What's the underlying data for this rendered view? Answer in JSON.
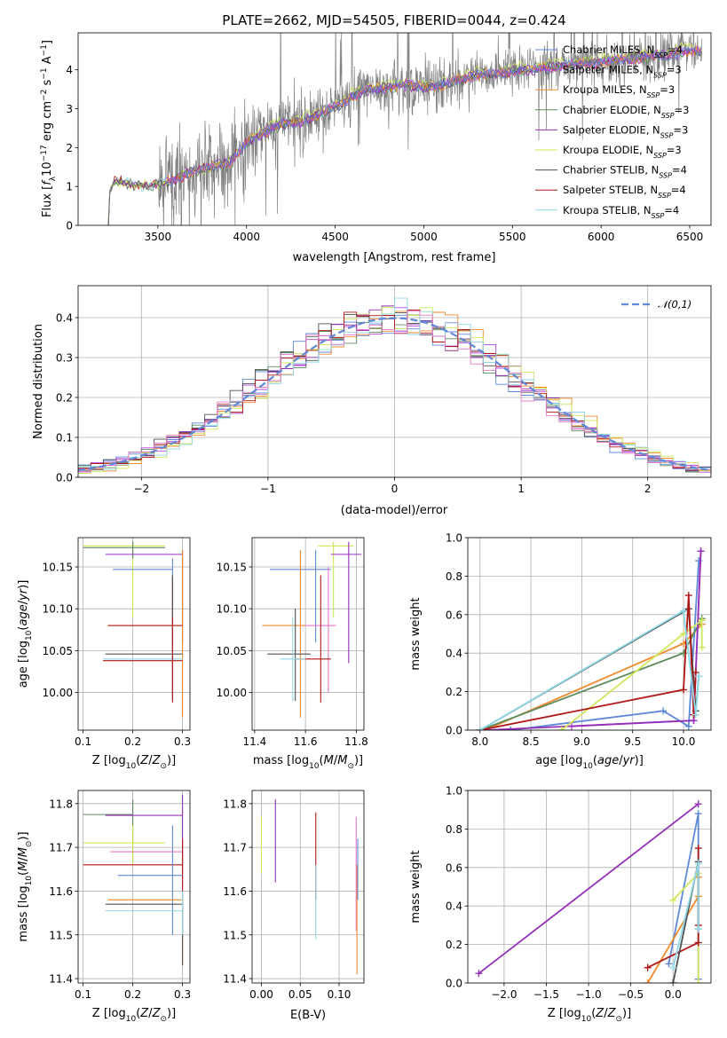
{
  "colors": {
    "chabrier_miles": "#5f88d8",
    "salpeter_miles": "#b548e0",
    "kroupa_miles": "#f28a2e",
    "chabrier_elodie": "#5c8a5c",
    "salpeter_elodie": "#9430b8",
    "kroupa_elodie": "#cfe85a",
    "chabrier_stelib": "#505050",
    "salpeter_stelib": "#b01818",
    "kroupa_stelib": "#8ed8e8",
    "data": "#808080",
    "pink": "#e878c8"
  },
  "chart_data": [
    {
      "id": "spectrum",
      "type": "line",
      "title": "PLATE=2662, MJD=54505, FIBERID=0044, z=0.424",
      "xlabel": "wavelength [Angstrom, rest frame]",
      "ylabel": "Flux [f_λ10^-17 erg cm^-2 s^-1 A^-1]",
      "xlim": [
        3050,
        6620
      ],
      "ylim": [
        0,
        4.95
      ],
      "xticks": [
        3500,
        4000,
        4500,
        5000,
        5500,
        6000,
        6500
      ],
      "yticks": [
        0,
        1,
        2,
        3,
        4
      ],
      "legend_position": "top-right",
      "legend": [
        {
          "label": "Chabrier MILES, N_SSP=4",
          "color_key": "chabrier_miles"
        },
        {
          "label": "Salpeter MILES, N_SSP=3",
          "color_key": "salpeter_miles"
        },
        {
          "label": "Kroupa MILES, N_SSP=3",
          "color_key": "kroupa_miles"
        },
        {
          "label": "Chabrier ELODIE, N_SSP=3",
          "color_key": "chabrier_elodie"
        },
        {
          "label": "Salpeter ELODIE, N_SSP=3",
          "color_key": "salpeter_elodie"
        },
        {
          "label": "Kroupa ELODIE, N_SSP=3",
          "color_key": "kroupa_elodie"
        },
        {
          "label": "Chabrier STELIB, N_SSP=4",
          "color_key": "chabrier_stelib"
        },
        {
          "label": "Salpeter STELIB, N_SSP=4",
          "color_key": "salpeter_stelib"
        },
        {
          "label": "Kroupa STELIB, N_SSP=4",
          "color_key": "kroupa_stelib"
        }
      ],
      "continuum": [
        [
          3220,
          0.0
        ],
        [
          3230,
          0.95
        ],
        [
          3260,
          1.15
        ],
        [
          3300,
          1.1
        ],
        [
          3400,
          1.02
        ],
        [
          3500,
          1.05
        ],
        [
          3600,
          1.2
        ],
        [
          3700,
          1.4
        ],
        [
          3800,
          1.5
        ],
        [
          3900,
          1.6
        ],
        [
          4000,
          2.1
        ],
        [
          4100,
          2.4
        ],
        [
          4200,
          2.6
        ],
        [
          4300,
          2.65
        ],
        [
          4400,
          2.85
        ],
        [
          4500,
          3.05
        ],
        [
          4600,
          3.3
        ],
        [
          4700,
          3.5
        ],
        [
          4800,
          3.55
        ],
        [
          4900,
          3.6
        ],
        [
          5000,
          3.55
        ],
        [
          5100,
          3.6
        ],
        [
          5200,
          3.75
        ],
        [
          5300,
          3.85
        ],
        [
          5400,
          3.9
        ],
        [
          5500,
          3.95
        ],
        [
          5600,
          4.0
        ],
        [
          5700,
          4.05
        ],
        [
          5800,
          4.1
        ],
        [
          5900,
          4.15
        ],
        [
          6000,
          4.2
        ],
        [
          6100,
          4.25
        ],
        [
          6200,
          4.3
        ],
        [
          6300,
          4.35
        ],
        [
          6400,
          4.4
        ],
        [
          6500,
          4.5
        ],
        [
          6570,
          4.45
        ]
      ],
      "noise_start": 3500
    },
    {
      "id": "residuals",
      "type": "bar",
      "xlabel": "(data-model)/error",
      "ylabel": "Normed distribution",
      "xlim": [
        -2.5,
        2.5
      ],
      "ylim": [
        0,
        0.48
      ],
      "xticks": [
        -2,
        -1,
        0,
        1,
        2
      ],
      "yticks": [
        0.0,
        0.1,
        0.2,
        0.3,
        0.4
      ],
      "legend": [
        {
          "label": "N(0,1)",
          "color_key": "chabrier_miles"
        }
      ],
      "legend_position": "top-right",
      "bin_width": 0.1,
      "bin_start": -2.5
    },
    {
      "id": "age_vs_Z",
      "type": "scatter",
      "xlabel": "Z [log10(Z/Z⊙)]",
      "ylabel": "age  [log10(age/yr)]",
      "xlim": [
        0.09,
        0.315
      ],
      "ylim": [
        9.955,
        10.185
      ],
      "xticks": [
        0.1,
        0.2,
        0.3
      ],
      "yticks": [
        10.0,
        10.05,
        10.1,
        10.15
      ],
      "points": [
        {
          "c": "kroupa_elodie",
          "x": 0.2,
          "xe": [
            0.1,
            0.265
          ],
          "y": 10.175,
          "ye": [
            10.09,
            10.18
          ]
        },
        {
          "c": "chabrier_elodie",
          "x": 0.2,
          "xe": [
            0.1,
            0.265
          ],
          "y": 10.173,
          "ye": [
            10.16,
            10.18
          ]
        },
        {
          "c": "salpeter_elodie",
          "x": 0.3,
          "xe": [
            0.145,
            0.3
          ],
          "y": 10.165,
          "ye": [
            10.06,
            10.17
          ]
        },
        {
          "c": "chabrier_miles",
          "x": 0.28,
          "xe": [
            0.16,
            0.28
          ],
          "y": 10.147,
          "ye": [
            10.05,
            10.16
          ]
        },
        {
          "c": "kroupa_miles",
          "x": 0.3,
          "xe": [
            0.15,
            0.3
          ],
          "y": 10.08,
          "ye": [
            9.97,
            10.17
          ]
        },
        {
          "c": "salpeter_stelib",
          "x": 0.28,
          "xe": [
            0.15,
            0.3
          ],
          "y": 10.08,
          "ye": [
            9.988,
            10.14
          ]
        },
        {
          "c": "chabrier_stelib",
          "x": 0.28,
          "xe": [
            0.145,
            0.3
          ],
          "y": 10.046,
          "ye": [
            9.99,
            10.14
          ]
        },
        {
          "c": "kroupa_stelib",
          "x": 0.28,
          "xe": [
            0.14,
            0.3
          ],
          "y": 10.04,
          "ye": [
            9.99,
            10.09
          ]
        },
        {
          "c": "salpeter_stelib",
          "x": 0.28,
          "xe": [
            0.14,
            0.3
          ],
          "y": 10.038,
          "ye": [
            9.99,
            10.09
          ]
        }
      ]
    },
    {
      "id": "age_vs_mass",
      "type": "scatter",
      "xlabel": "mass [log10(M/M⊙)]",
      "ylabel": "",
      "xlim": [
        11.39,
        11.83
      ],
      "ylim": [
        9.955,
        10.185
      ],
      "xticks": [
        11.4,
        11.6,
        11.8
      ],
      "yticks": [
        10.0,
        10.05,
        10.1,
        10.15
      ],
      "points": [
        {
          "c": "kroupa_elodie",
          "x": 11.71,
          "xe": [
            11.65,
            11.79
          ],
          "y": 10.175,
          "ye": [
            10.09,
            10.18
          ]
        },
        {
          "c": "salpeter_elodie",
          "x": 11.77,
          "xe": [
            11.7,
            11.82
          ],
          "y": 10.165,
          "ye": [
            10.035,
            10.18
          ]
        },
        {
          "c": "chabrier_miles",
          "x": 11.64,
          "xe": [
            11.46,
            11.7
          ],
          "y": 10.147,
          "ye": [
            10.06,
            10.17
          ]
        },
        {
          "c": "kroupa_miles",
          "x": 11.58,
          "xe": [
            11.43,
            11.6
          ],
          "y": 10.08,
          "ye": [
            9.97,
            10.17
          ]
        },
        {
          "c": "pink",
          "x": 11.69,
          "xe": [
            11.6,
            11.72
          ],
          "y": 10.08,
          "ye": [
            10.0,
            10.15
          ]
        },
        {
          "c": "chabrier_stelib",
          "x": 11.56,
          "xe": [
            11.45,
            11.62
          ],
          "y": 10.046,
          "ye": [
            9.99,
            10.1
          ]
        },
        {
          "c": "salpeter_stelib",
          "x": 11.66,
          "xe": [
            11.56,
            11.7
          ],
          "y": 10.04,
          "ye": [
            9.988,
            10.14
          ]
        },
        {
          "c": "kroupa_stelib",
          "x": 11.55,
          "xe": [
            11.5,
            11.6
          ],
          "y": 10.04,
          "ye": [
            9.99,
            10.09
          ]
        }
      ]
    },
    {
      "id": "weight_vs_age",
      "type": "line",
      "xlabel": "age  [log10(age/yr)]",
      "ylabel": "mass weight",
      "xlim": [
        7.88,
        10.27
      ],
      "ylim": [
        0,
        1.0
      ],
      "xticks": [
        8.0,
        8.5,
        9.0,
        9.5,
        10.0
      ],
      "yticks": [
        0.0,
        0.2,
        0.4,
        0.6,
        0.8,
        1.0
      ],
      "series": [
        {
          "c": "chabrier_miles",
          "x": [
            8.3,
            9.8,
            10.05,
            10.15
          ],
          "y": [
            0.0,
            0.1,
            0.02,
            0.88
          ]
        },
        {
          "c": "salpeter_miles",
          "x": [
            8.9,
            10.1,
            10.17
          ],
          "y": [
            0.02,
            0.05,
            0.93
          ]
        },
        {
          "c": "kroupa_miles",
          "x": [
            8.05,
            10.0,
            10.18
          ],
          "y": [
            0.0,
            0.45,
            0.55
          ]
        },
        {
          "c": "chabrier_elodie",
          "x": [
            8.0,
            10.0,
            10.18
          ],
          "y": [
            0.0,
            0.4,
            0.58
          ]
        },
        {
          "c": "salpeter_elodie",
          "x": [
            8.05,
            10.1,
            10.17
          ],
          "y": [
            0.0,
            0.05,
            0.93
          ]
        },
        {
          "c": "kroupa_elodie",
          "x": [
            8.8,
            10.0,
            10.18,
            10.18
          ],
          "y": [
            0.0,
            0.5,
            0.57,
            0.43
          ]
        },
        {
          "c": "chabrier_stelib",
          "x": [
            8.0,
            10.05,
            10.12,
            10.15
          ],
          "y": [
            0.0,
            0.63,
            0.1,
            0.28
          ]
        },
        {
          "c": "salpeter_stelib",
          "x": [
            8.0,
            10.0,
            10.05,
            10.1,
            10.12
          ],
          "y": [
            0.0,
            0.21,
            0.7,
            0.08,
            0.3
          ]
        },
        {
          "c": "kroupa_stelib",
          "x": [
            8.0,
            10.0,
            10.12,
            10.15
          ],
          "y": [
            0.0,
            0.62,
            0.08,
            0.28
          ]
        }
      ]
    },
    {
      "id": "mass_vs_Z",
      "type": "scatter",
      "xlabel": "Z [log10(Z/Z⊙)]",
      "ylabel": "mass [log10(M/M⊙)]",
      "xlim": [
        0.09,
        0.315
      ],
      "ylim": [
        11.39,
        11.83
      ],
      "xticks": [
        0.1,
        0.2,
        0.3
      ],
      "yticks": [
        11.4,
        11.5,
        11.6,
        11.7,
        11.8
      ],
      "points": [
        {
          "c": "chabrier_elodie",
          "x": 0.2,
          "xe": [
            0.1,
            0.2
          ],
          "y": 11.775,
          "ye": [
            11.66,
            11.81
          ]
        },
        {
          "c": "salpeter_elodie",
          "x": 0.3,
          "xe": [
            0.145,
            0.3
          ],
          "y": 11.773,
          "ye": [
            11.64,
            11.82
          ]
        },
        {
          "c": "kroupa_elodie",
          "x": 0.2,
          "xe": [
            0.1,
            0.265
          ],
          "y": 11.71,
          "ye": [
            11.66,
            11.75
          ]
        },
        {
          "c": "pink",
          "x": 0.3,
          "xe": [
            0.155,
            0.3
          ],
          "y": 11.69,
          "ye": [
            11.6,
            11.72
          ]
        },
        {
          "c": "salpeter_stelib",
          "x": 0.3,
          "xe": [
            0.1,
            0.3
          ],
          "y": 11.66,
          "ye": [
            11.6,
            11.72
          ]
        },
        {
          "c": "chabrier_miles",
          "x": 0.28,
          "xe": [
            0.17,
            0.3
          ],
          "y": 11.636,
          "ye": [
            11.5,
            11.75
          ]
        },
        {
          "c": "kroupa_miles",
          "x": 0.3,
          "xe": [
            0.15,
            0.3
          ],
          "y": 11.58,
          "ye": [
            11.43,
            11.6
          ]
        },
        {
          "c": "chabrier_stelib",
          "x": 0.3,
          "xe": [
            0.145,
            0.3
          ],
          "y": 11.57,
          "ye": [
            11.43,
            11.6
          ]
        },
        {
          "c": "kroupa_stelib",
          "x": 0.3,
          "xe": [
            0.145,
            0.3
          ],
          "y": 11.555,
          "ye": [
            11.5,
            11.6
          ]
        }
      ]
    },
    {
      "id": "mass_vs_ebv",
      "type": "scatter",
      "xlabel": "E(B-V)",
      "ylabel": "",
      "xlim": [
        -0.012,
        0.132
      ],
      "ylim": [
        11.39,
        11.83
      ],
      "xticks": [
        0.0,
        0.05,
        0.1
      ],
      "yticks": [
        11.4,
        11.5,
        11.6,
        11.7,
        11.8
      ],
      "points": [
        {
          "c": "kroupa_elodie",
          "x": 0.0,
          "y": 11.71,
          "ye": [
            11.64,
            11.77
          ]
        },
        {
          "c": "salpeter_elodie",
          "x": 0.018,
          "y": 11.77,
          "ye": [
            11.62,
            11.81
          ]
        },
        {
          "c": "salpeter_stelib",
          "x": 0.07,
          "y": 11.7,
          "ye": [
            11.58,
            11.78
          ]
        },
        {
          "c": "kroupa_stelib",
          "x": 0.07,
          "y": 11.57,
          "ye": [
            11.49,
            11.66
          ]
        },
        {
          "c": "pink",
          "x": 0.122,
          "y": 11.65,
          "ye": [
            11.51,
            11.77
          ]
        },
        {
          "c": "kroupa_miles",
          "x": 0.123,
          "y": 11.5,
          "ye": [
            11.41,
            11.66
          ]
        },
        {
          "c": "chabrier_miles",
          "x": 0.124,
          "y": 11.64,
          "ye": [
            11.58,
            11.72
          ]
        }
      ]
    },
    {
      "id": "weight_vs_Z",
      "type": "line",
      "xlabel": "Z [log10(Z/Z⊙)]",
      "ylabel": "mass weight",
      "xlim": [
        -2.43,
        0.45
      ],
      "ylim": [
        0,
        1.0
      ],
      "xticks": [
        -2.0,
        -1.5,
        -1.0,
        -0.5,
        0.0
      ],
      "yticks": [
        0.0,
        0.2,
        0.4,
        0.6,
        0.8,
        1.0
      ],
      "series": [
        {
          "c": "salpeter_elodie",
          "x": [
            -2.3,
            0.3
          ],
          "y": [
            0.05,
            0.93
          ]
        },
        {
          "c": "chabrier_miles",
          "x": [
            -0.05,
            0.3,
            0.3
          ],
          "y": [
            0.1,
            0.88,
            0.02
          ]
        },
        {
          "c": "kroupa_miles",
          "x": [
            -0.3,
            0.3,
            0.3
          ],
          "y": [
            0.0,
            0.45,
            0.55
          ]
        },
        {
          "c": "kroupa_elodie",
          "x": [
            0.0,
            0.3,
            0.3
          ],
          "y": [
            0.43,
            0.57,
            0.0
          ]
        },
        {
          "c": "salpeter_stelib",
          "x": [
            -0.3,
            0.3,
            0.3,
            0.3
          ],
          "y": [
            0.08,
            0.21,
            0.7,
            0.3
          ]
        },
        {
          "c": "chabrier_stelib",
          "x": [
            0.0,
            0.3,
            0.3
          ],
          "y": [
            0.0,
            0.63,
            0.28
          ]
        },
        {
          "c": "kroupa_stelib",
          "x": [
            0.0,
            0.3,
            0.3
          ],
          "y": [
            0.08,
            0.62,
            0.28
          ]
        }
      ]
    }
  ]
}
